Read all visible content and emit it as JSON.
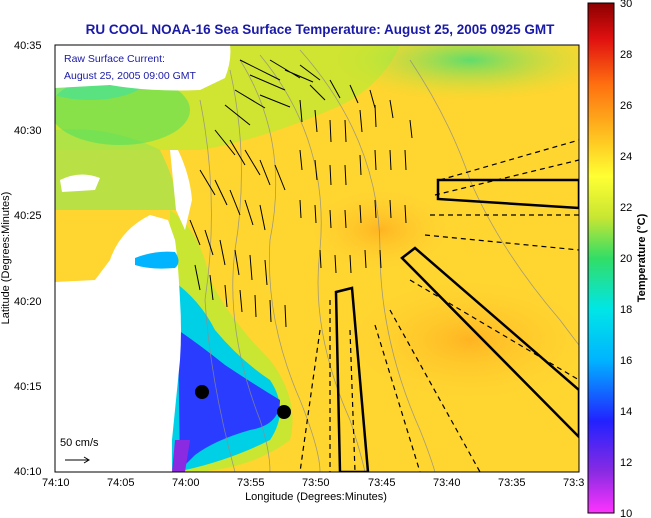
{
  "title": "RU COOL  NOAA-16  Sea Surface Temperature:  August 25, 2005 0925 GMT",
  "annotations": {
    "current_label": "Raw Surface Current:",
    "current_time": "August 25, 2005 09:00 GMT",
    "scale_label": "50 cm/s"
  },
  "axes": {
    "xlabel": "Longitude (Degrees:Minutes)",
    "ylabel": "Latitude (Degrees:Minutes)",
    "xticks": [
      "74:10",
      "74:05",
      "74:00",
      "73:55",
      "73:50",
      "73:45",
      "73:40",
      "73:35",
      "73:3"
    ],
    "yticks": [
      "40:35",
      "40:30",
      "40:25",
      "40:20",
      "40:15",
      "40:10"
    ]
  },
  "colorbar": {
    "label": "Temperature (°C)",
    "ticks": [
      "30",
      "28",
      "26",
      "24",
      "22",
      "20",
      "18",
      "16",
      "14",
      "12",
      "10"
    ],
    "colors": [
      "#ff33ff",
      "#8a2be2",
      "#2222ff",
      "#00b4ff",
      "#00e6e6",
      "#33dd66",
      "#c8e632",
      "#ffff33",
      "#ffc020",
      "#ff7010",
      "#e01010",
      "#8b0000"
    ]
  },
  "colors": {
    "title_text": "#1a1aa8",
    "land": "#ffffff",
    "ocean_warm": "#ffd030",
    "ocean_mid": "#c8e632",
    "ocean_cool": "#00d0e6",
    "ocean_cold": "#2a3cff"
  },
  "chart_data": {
    "type": "heatmap",
    "title": "RU COOL  NOAA-16  Sea Surface Temperature:  August 25, 2005 0925 GMT",
    "xlabel": "Longitude (Degrees:Minutes)",
    "ylabel": "Latitude (Degrees:Minutes)",
    "xlim": [
      "74:10",
      "73:30"
    ],
    "ylim": [
      "40:10",
      "40:35"
    ],
    "colorbar_range": [
      10,
      30
    ],
    "colorbar_label": "Temperature (°C)"
  }
}
